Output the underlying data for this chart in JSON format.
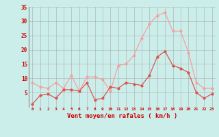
{
  "x": [
    0,
    1,
    2,
    3,
    4,
    5,
    6,
    7,
    8,
    9,
    10,
    11,
    12,
    13,
    14,
    15,
    16,
    17,
    18,
    19,
    20,
    21,
    22,
    23
  ],
  "vent_moyen": [
    1,
    4,
    4.5,
    3,
    6,
    6,
    5.5,
    8.5,
    2.5,
    3,
    7,
    6.5,
    8.5,
    8,
    7.5,
    11,
    17.5,
    19.5,
    14.5,
    13.5,
    12,
    5,
    3,
    4.5
  ],
  "en_rafales": [
    8.5,
    7,
    6.5,
    8.5,
    6.5,
    11,
    5.5,
    10.5,
    10.5,
    9.5,
    5.5,
    14.5,
    15,
    18,
    24,
    29,
    32,
    33,
    26.5,
    26.5,
    19,
    8.5,
    6.5,
    6.5
  ],
  "color_moyen": "#d9534f",
  "color_rafales": "#f4a0a0",
  "bg_color": "#cceeea",
  "grid_color": "#aaaaaa",
  "tick_color": "#cc0000",
  "label_color": "#cc0000",
  "xlabel": "Vent moyen/en rafales ( km/h )",
  "ylim": [
    0,
    35
  ],
  "yticks": [
    5,
    10,
    15,
    20,
    25,
    30,
    35
  ],
  "xticks": [
    0,
    1,
    2,
    3,
    4,
    5,
    6,
    7,
    8,
    9,
    10,
    11,
    12,
    13,
    14,
    15,
    16,
    17,
    18,
    19,
    20,
    21,
    22,
    23
  ],
  "marker_size": 2,
  "line_width": 0.9
}
